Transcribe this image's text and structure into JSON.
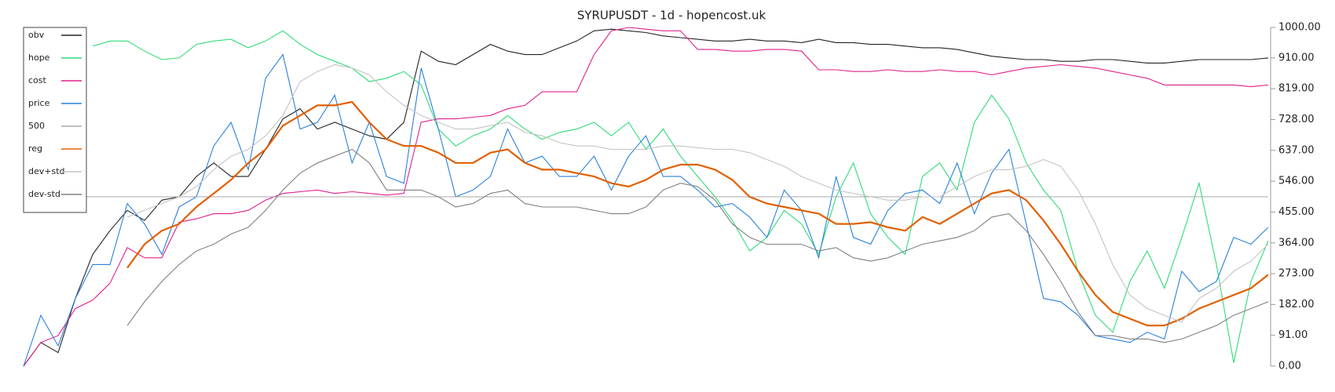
{
  "chart_data": {
    "type": "line",
    "title": "SYRUPUSDT - 1d - hopencost.uk",
    "ylim": [
      0,
      1000
    ],
    "yticks": [
      {
        "value": 0,
        "label": "0.00"
      },
      {
        "value": 91,
        "label": "91.00"
      },
      {
        "value": 182,
        "label": "182.00"
      },
      {
        "value": 273,
        "label": "273.00"
      },
      {
        "value": 364,
        "label": "364.00"
      },
      {
        "value": 455,
        "label": "455.00"
      },
      {
        "value": 546,
        "label": "546.00"
      },
      {
        "value": 637,
        "label": "637.00"
      },
      {
        "value": 728,
        "label": "728.00"
      },
      {
        "value": 819,
        "label": "819.00"
      },
      {
        "value": 910,
        "label": "910.00"
      },
      {
        "value": 1000,
        "label": "1000.00"
      }
    ],
    "legend": "upper left",
    "series": [
      {
        "name": "obv",
        "color": "#222222",
        "values": [
          0,
          70,
          40,
          200,
          330,
          400,
          460,
          430,
          490,
          500,
          560,
          600,
          560,
          560,
          640,
          730,
          760,
          700,
          720,
          700,
          680,
          670,
          720,
          930,
          900,
          890,
          920,
          950,
          930,
          920,
          920,
          940,
          960,
          990,
          995,
          990,
          985,
          975,
          970,
          965,
          960,
          960,
          965,
          960,
          960,
          955,
          965,
          955,
          955,
          950,
          950,
          945,
          940,
          940,
          935,
          925,
          915,
          910,
          905,
          905,
          900,
          900,
          905,
          905,
          900,
          895,
          895,
          900,
          905,
          905,
          905,
          905,
          910
        ]
      },
      {
        "name": "hope",
        "color": "#2fdc78",
        "values": [
          null,
          null,
          null,
          null,
          945,
          960,
          960,
          930,
          905,
          910,
          950,
          960,
          965,
          940,
          960,
          990,
          950,
          920,
          900,
          880,
          840,
          850,
          870,
          830,
          700,
          650,
          680,
          700,
          740,
          700,
          670,
          690,
          700,
          720,
          680,
          720,
          640,
          700,
          620,
          560,
          500,
          430,
          340,
          380,
          460,
          420,
          330,
          500,
          600,
          450,
          380,
          330,
          560,
          600,
          520,
          720,
          800,
          730,
          600,
          520,
          460,
          280,
          150,
          100,
          250,
          340,
          230,
          380,
          540,
          300,
          10,
          250,
          370
        ]
      },
      {
        "name": "cost",
        "color": "#e0218a",
        "values": [
          0,
          70,
          90,
          170,
          195,
          245,
          350,
          320,
          320,
          425,
          435,
          450,
          450,
          460,
          490,
          510,
          515,
          520,
          510,
          515,
          510,
          505,
          510,
          720,
          730,
          730,
          735,
          740,
          760,
          770,
          810,
          810,
          810,
          920,
          990,
          1000,
          995,
          990,
          990,
          935,
          935,
          930,
          930,
          935,
          935,
          930,
          875,
          875,
          870,
          870,
          875,
          870,
          870,
          875,
          870,
          870,
          860,
          870,
          880,
          885,
          890,
          885,
          880,
          870,
          860,
          850,
          830,
          830,
          830,
          830,
          830,
          825,
          830
        ]
      },
      {
        "name": "price",
        "color": "#2a80dc",
        "values": [
          0,
          150,
          60,
          200,
          300,
          300,
          480,
          420,
          330,
          470,
          500,
          650,
          720,
          580,
          850,
          920,
          700,
          720,
          800,
          600,
          720,
          560,
          540,
          880,
          700,
          500,
          520,
          560,
          700,
          600,
          620,
          560,
          560,
          620,
          520,
          620,
          680,
          560,
          560,
          520,
          470,
          480,
          440,
          380,
          520,
          460,
          320,
          560,
          380,
          360,
          460,
          510,
          520,
          480,
          600,
          450,
          570,
          640,
          420,
          200,
          190,
          150,
          90,
          80,
          70,
          100,
          80,
          280,
          220,
          250,
          380,
          360,
          410
        ]
      },
      {
        "name": "500",
        "color": "#aaaaaa",
        "values": [
          500,
          500,
          500,
          500,
          500,
          500,
          500,
          500,
          500,
          500,
          500,
          500,
          500,
          500,
          500,
          500,
          500,
          500,
          500,
          500,
          500,
          500,
          500,
          500,
          500,
          500,
          500,
          500,
          500,
          500,
          500,
          500,
          500,
          500,
          500,
          500,
          500,
          500,
          500,
          500,
          500,
          500,
          500,
          500,
          500,
          500,
          500,
          500,
          500,
          500,
          500,
          500,
          500,
          500,
          500,
          500,
          500,
          500,
          500,
          500,
          500,
          500,
          500,
          500,
          500,
          500,
          500,
          500,
          500,
          500,
          500,
          500,
          500
        ]
      },
      {
        "name": "reg",
        "color": "#e06000",
        "values": [
          null,
          null,
          null,
          null,
          null,
          null,
          290,
          360,
          400,
          420,
          470,
          510,
          550,
          600,
          640,
          710,
          740,
          770,
          770,
          780,
          720,
          670,
          650,
          650,
          630,
          600,
          600,
          630,
          640,
          600,
          580,
          580,
          570,
          560,
          540,
          530,
          550,
          580,
          595,
          595,
          580,
          550,
          500,
          480,
          470,
          460,
          450,
          420,
          420,
          425,
          410,
          400,
          440,
          420,
          450,
          480,
          510,
          520,
          490,
          430,
          360,
          280,
          210,
          160,
          140,
          120,
          120,
          140,
          170,
          190,
          210,
          230,
          270
        ]
      },
      {
        "name": "dev+std",
        "color": "#c4c4c4",
        "values": [
          null,
          null,
          null,
          null,
          null,
          null,
          440,
          460,
          480,
          500,
          530,
          580,
          620,
          640,
          680,
          740,
          840,
          870,
          890,
          880,
          860,
          810,
          770,
          740,
          720,
          700,
          700,
          710,
          720,
          690,
          680,
          660,
          650,
          650,
          640,
          640,
          640,
          650,
          650,
          645,
          640,
          640,
          630,
          610,
          590,
          560,
          540,
          520,
          510,
          500,
          490,
          490,
          500,
          500,
          530,
          560,
          580,
          580,
          590,
          610,
          590,
          520,
          420,
          300,
          210,
          170,
          150,
          130,
          200,
          230,
          280,
          310,
          360
        ]
      },
      {
        "name": "dev-std",
        "color": "#808080",
        "values": [
          null,
          null,
          null,
          null,
          null,
          null,
          120,
          190,
          250,
          300,
          340,
          360,
          390,
          410,
          460,
          520,
          570,
          600,
          620,
          640,
          600,
          520,
          520,
          520,
          500,
          470,
          480,
          510,
          520,
          480,
          470,
          470,
          470,
          460,
          450,
          450,
          470,
          520,
          540,
          530,
          490,
          420,
          380,
          360,
          360,
          360,
          340,
          350,
          320,
          310,
          320,
          340,
          360,
          370,
          380,
          400,
          440,
          450,
          400,
          330,
          250,
          160,
          90,
          90,
          80,
          80,
          70,
          80,
          100,
          120,
          150,
          170,
          190
        ]
      }
    ]
  }
}
